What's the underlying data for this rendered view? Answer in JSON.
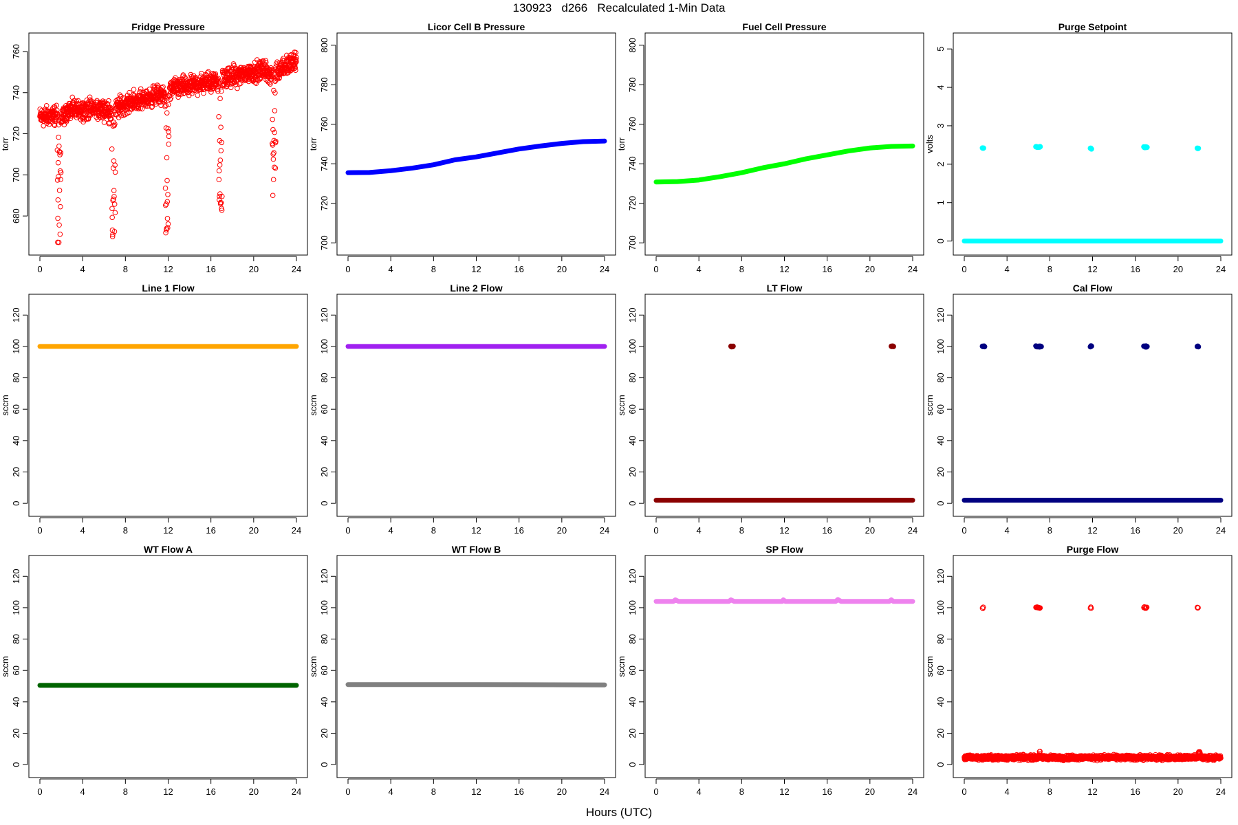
{
  "figure": {
    "title": "130923   d266   Recalculated 1-Min Data",
    "xlabel": "Hours (UTC)"
  },
  "chart_data": [
    {
      "type": "scatter",
      "title": "Fridge Pressure",
      "ylabel": "torr",
      "color": "#ff0000",
      "marker": "open",
      "xlim": [
        0,
        24
      ],
      "ylim": [
        665,
        765
      ],
      "xticks": [
        0,
        4,
        8,
        12,
        16,
        20,
        24
      ],
      "yticks": [
        680,
        700,
        720,
        740,
        760
      ],
      "base": [
        [
          0,
          728
        ],
        [
          1.5,
          729
        ],
        [
          1.9,
          727
        ],
        [
          2.6,
          731
        ],
        [
          4,
          732
        ],
        [
          5.5,
          732
        ],
        [
          6.8,
          731
        ],
        [
          7.4,
          733
        ],
        [
          8.2,
          735
        ],
        [
          10,
          737
        ],
        [
          11,
          739
        ],
        [
          11.8,
          738
        ],
        [
          12.4,
          742
        ],
        [
          14,
          743
        ],
        [
          15.5,
          745
        ],
        [
          16.8,
          746
        ],
        [
          17.4,
          747
        ],
        [
          19,
          749
        ],
        [
          21,
          751
        ],
        [
          21.6,
          749
        ],
        [
          22.2,
          751
        ],
        [
          23,
          753
        ],
        [
          24,
          755
        ]
      ],
      "noise": 7,
      "dips": [
        {
          "x": 1.8,
          "min": 666
        },
        {
          "x": 6.9,
          "min": 669
        },
        {
          "x": 11.9,
          "min": 671
        },
        {
          "x": 16.9,
          "min": 679
        },
        {
          "x": 21.9,
          "min": 686
        }
      ]
    },
    {
      "type": "line",
      "title": "Licor Cell B Pressure",
      "ylabel": "torr",
      "color": "#0000ff",
      "xlim": [
        0,
        24
      ],
      "ylim": [
        698,
        802
      ],
      "xticks": [
        0,
        4,
        8,
        12,
        16,
        20,
        24
      ],
      "yticks": [
        700,
        720,
        740,
        760,
        780,
        800
      ],
      "series": [
        [
          0,
          735.5
        ],
        [
          2,
          735.6
        ],
        [
          4,
          736.5
        ],
        [
          6,
          737.8
        ],
        [
          8,
          739.5
        ],
        [
          10,
          742
        ],
        [
          12,
          743.5
        ],
        [
          14,
          745.5
        ],
        [
          16,
          747.5
        ],
        [
          18,
          749
        ],
        [
          20,
          750.3
        ],
        [
          22,
          751.2
        ],
        [
          24,
          751.5
        ]
      ]
    },
    {
      "type": "line",
      "title": "Fuel Cell Pressure",
      "ylabel": "torr",
      "color": "#00ff00",
      "xlim": [
        0,
        24
      ],
      "ylim": [
        698,
        802
      ],
      "xticks": [
        0,
        4,
        8,
        12,
        16,
        20,
        24
      ],
      "yticks": [
        700,
        720,
        740,
        760,
        780,
        800
      ],
      "series": [
        [
          0,
          730.8
        ],
        [
          2,
          731
        ],
        [
          4,
          731.8
        ],
        [
          6,
          733.5
        ],
        [
          8,
          735.5
        ],
        [
          10,
          738
        ],
        [
          12,
          740
        ],
        [
          14,
          742.5
        ],
        [
          16,
          744.5
        ],
        [
          18,
          746.5
        ],
        [
          20,
          748
        ],
        [
          22,
          748.8
        ],
        [
          24,
          749
        ]
      ]
    },
    {
      "type": "scatter",
      "title": "Purge Setpoint",
      "ylabel": "volts",
      "color": "#00ffff",
      "xlim": [
        0,
        24
      ],
      "ylim": [
        -0.15,
        5.2
      ],
      "xticks": [
        0,
        4,
        8,
        12,
        16,
        20,
        24
      ],
      "yticks": [
        0,
        1,
        2,
        3,
        4,
        5
      ],
      "series": [
        [
          0,
          0
        ],
        [
          24,
          0
        ]
      ],
      "clusters": [
        {
          "x": [
            1.7,
            1.8
          ],
          "y": 2.42
        },
        {
          "x": [
            6.7,
            7.1
          ],
          "y": 2.45
        },
        {
          "x": [
            11.8,
            11.9
          ],
          "y": 2.41
        },
        {
          "x": [
            16.8,
            17.1
          ],
          "y": 2.44
        },
        {
          "x": [
            21.8,
            21.9
          ],
          "y": 2.42
        }
      ]
    },
    {
      "type": "line",
      "title": "Line 1 Flow",
      "ylabel": "sccm",
      "color": "#ffa500",
      "xlim": [
        0,
        24
      ],
      "ylim": [
        -3,
        128
      ],
      "xticks": [
        0,
        4,
        8,
        12,
        16,
        20,
        24
      ],
      "yticks": [
        0,
        20,
        40,
        60,
        80,
        100,
        120
      ],
      "series": [
        [
          0,
          100
        ],
        [
          24,
          100
        ]
      ]
    },
    {
      "type": "line",
      "title": "Line 2 Flow",
      "ylabel": "sccm",
      "color": "#a020f0",
      "xlim": [
        0,
        24
      ],
      "ylim": [
        -3,
        128
      ],
      "xticks": [
        0,
        4,
        8,
        12,
        16,
        20,
        24
      ],
      "yticks": [
        0,
        20,
        40,
        60,
        80,
        100,
        120
      ],
      "series": [
        [
          0,
          100
        ],
        [
          24,
          100
        ]
      ]
    },
    {
      "type": "scatter",
      "title": "LT Flow",
      "ylabel": "sccm",
      "color": "#8b0000",
      "xlim": [
        0,
        24
      ],
      "ylim": [
        -3,
        128
      ],
      "xticks": [
        0,
        4,
        8,
        12,
        16,
        20,
        24
      ],
      "yticks": [
        0,
        20,
        40,
        60,
        80,
        100,
        120
      ],
      "series": [
        [
          0,
          2
        ],
        [
          24,
          2
        ]
      ],
      "clusters": [
        {
          "x": [
            7.0,
            7.2
          ],
          "y": 100
        },
        {
          "x": [
            22.0,
            22.2
          ],
          "y": 100
        }
      ]
    },
    {
      "type": "scatter",
      "title": "Cal Flow",
      "ylabel": "sccm",
      "color": "#000080",
      "xlim": [
        0,
        24
      ],
      "ylim": [
        -3,
        128
      ],
      "xticks": [
        0,
        4,
        8,
        12,
        16,
        20,
        24
      ],
      "yticks": [
        0,
        20,
        40,
        60,
        80,
        100,
        120
      ],
      "series": [
        [
          0,
          2
        ],
        [
          24,
          2
        ]
      ],
      "clusters": [
        {
          "x": [
            1.7,
            1.9
          ],
          "y": 100
        },
        {
          "x": [
            6.7,
            7.2
          ],
          "y": 100
        },
        {
          "x": [
            11.8,
            11.9
          ],
          "y": 100
        },
        {
          "x": [
            16.8,
            17.1
          ],
          "y": 100
        },
        {
          "x": [
            21.8,
            21.9
          ],
          "y": 100
        }
      ]
    },
    {
      "type": "line",
      "title": "WT Flow A",
      "ylabel": "sccm",
      "color": "#006400",
      "xlim": [
        0,
        24
      ],
      "ylim": [
        -3,
        128
      ],
      "xticks": [
        0,
        4,
        8,
        12,
        16,
        20,
        24
      ],
      "yticks": [
        0,
        20,
        40,
        60,
        80,
        100,
        120
      ],
      "series": [
        [
          0,
          50.5
        ],
        [
          24,
          50.5
        ]
      ]
    },
    {
      "type": "line",
      "title": "WT Flow B",
      "ylabel": "sccm",
      "color": "#808080",
      "xlim": [
        0,
        24
      ],
      "ylim": [
        -3,
        128
      ],
      "xticks": [
        0,
        4,
        8,
        12,
        16,
        20,
        24
      ],
      "yticks": [
        0,
        20,
        40,
        60,
        80,
        100,
        120
      ],
      "series": [
        [
          0,
          51
        ],
        [
          12,
          51
        ],
        [
          24,
          50.8
        ]
      ]
    },
    {
      "type": "line",
      "title": "SP Flow",
      "ylabel": "sccm",
      "color": "#ee82ee",
      "xlim": [
        0,
        24
      ],
      "ylim": [
        -3,
        128
      ],
      "xticks": [
        0,
        4,
        8,
        12,
        16,
        20,
        24
      ],
      "yticks": [
        0,
        20,
        40,
        60,
        80,
        100,
        120
      ],
      "series": [
        [
          0,
          104
        ],
        [
          1.6,
          104
        ],
        [
          1.8,
          105
        ],
        [
          2.1,
          104
        ],
        [
          6.8,
          104
        ],
        [
          7.0,
          105
        ],
        [
          7.3,
          104
        ],
        [
          11.8,
          104
        ],
        [
          11.9,
          105
        ],
        [
          12.1,
          104
        ],
        [
          16.8,
          104
        ],
        [
          17.0,
          105.2
        ],
        [
          17.3,
          104
        ],
        [
          21.8,
          104
        ],
        [
          22.0,
          105
        ],
        [
          22.2,
          104
        ],
        [
          24,
          104
        ]
      ]
    },
    {
      "type": "scatter",
      "title": "Purge Flow",
      "ylabel": "sccm",
      "color": "#ff0000",
      "marker": "open",
      "xlim": [
        0,
        24
      ],
      "ylim": [
        -3,
        128
      ],
      "xticks": [
        0,
        4,
        8,
        12,
        16,
        20,
        24
      ],
      "yticks": [
        0,
        20,
        40,
        60,
        80,
        100,
        120
      ],
      "base": [
        [
          0,
          4.5
        ],
        [
          24,
          4.5
        ]
      ],
      "noise": 2.2,
      "clusters": [
        {
          "x": [
            1.7,
            1.8
          ],
          "y": 100
        },
        {
          "x": [
            6.7,
            7.1
          ],
          "y": 100
        },
        {
          "x": [
            11.8,
            11.9
          ],
          "y": 100
        },
        {
          "x": [
            16.8,
            17.1
          ],
          "y": 100
        },
        {
          "x": [
            21.8,
            21.9
          ],
          "y": 100
        }
      ],
      "bumps": [
        {
          "x": 7.0,
          "y": 9
        },
        {
          "x": 22.0,
          "y": 9
        }
      ]
    }
  ]
}
